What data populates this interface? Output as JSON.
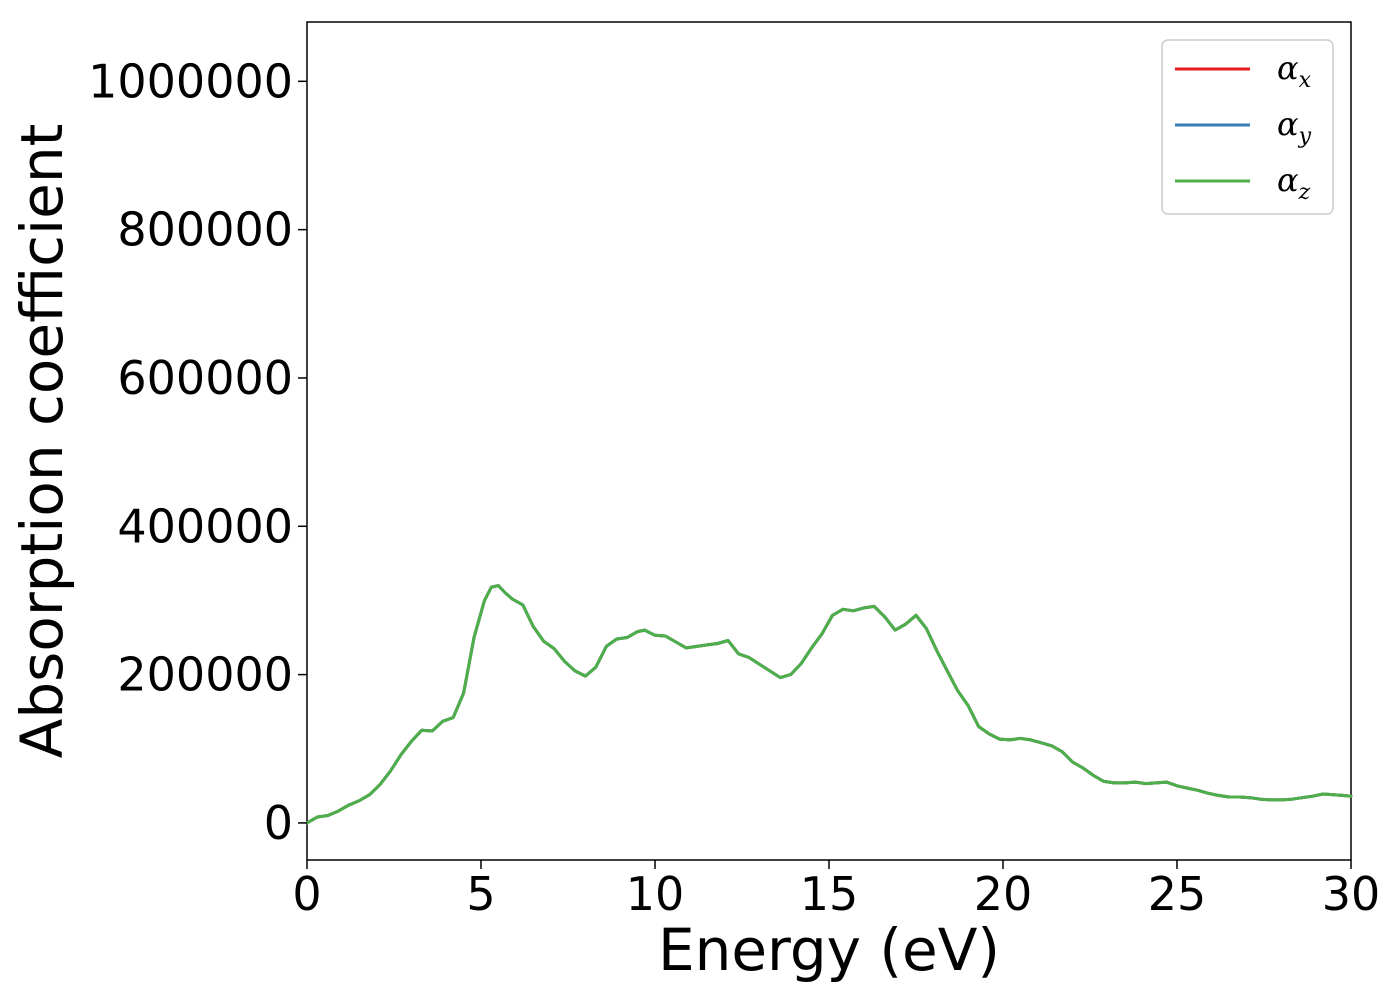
{
  "chart_data": {
    "type": "line",
    "xlabel": "Energy (eV)",
    "ylabel": "Absorption coefficient",
    "xlim": [
      0,
      30
    ],
    "ylim": [
      -50000,
      1080000
    ],
    "xticks": [
      0,
      5,
      10,
      15,
      20,
      25,
      30
    ],
    "yticks": [
      0,
      200000,
      400000,
      600000,
      800000,
      1000000
    ],
    "grid": false,
    "legend_position": "top-right",
    "series": [
      {
        "name": "α",
        "subscript": "x",
        "color": "#e41a1c"
      },
      {
        "name": "α",
        "subscript": "y",
        "color": "#377eb8"
      },
      {
        "name": "α",
        "subscript": "z",
        "color": "#4daf4a"
      }
    ],
    "x": [
      0,
      0.3,
      0.6,
      0.9,
      1.2,
      1.5,
      1.8,
      2.1,
      2.4,
      2.7,
      3.0,
      3.3,
      3.6,
      3.9,
      4.2,
      4.5,
      4.8,
      5.1,
      5.3,
      5.5,
      5.7,
      5.9,
      6.2,
      6.5,
      6.8,
      7.1,
      7.4,
      7.7,
      8.0,
      8.3,
      8.6,
      8.9,
      9.2,
      9.5,
      9.7,
      10.0,
      10.3,
      10.6,
      10.9,
      11.2,
      11.5,
      11.8,
      12.1,
      12.4,
      12.7,
      13.0,
      13.3,
      13.6,
      13.9,
      14.2,
      14.5,
      14.8,
      15.1,
      15.4,
      15.7,
      16.0,
      16.3,
      16.6,
      16.9,
      17.2,
      17.5,
      17.8,
      18.1,
      18.4,
      18.7,
      19.0,
      19.3,
      19.6,
      19.9,
      20.2,
      20.5,
      20.8,
      21.1,
      21.4,
      21.7,
      22.0,
      22.3,
      22.6,
      22.9,
      23.2,
      23.5,
      23.8,
      24.1,
      24.4,
      24.7,
      25.0,
      25.3,
      25.6,
      25.9,
      26.2,
      26.5,
      26.8,
      27.1,
      27.4,
      27.7,
      28.0,
      28.3,
      28.6,
      28.9,
      29.2,
      29.5,
      29.8,
      30.0
    ],
    "values": [
      0,
      8000,
      10000,
      16000,
      24000,
      30000,
      38000,
      52000,
      70000,
      92000,
      110000,
      125000,
      124000,
      137000,
      142000,
      175000,
      250000,
      300000,
      318000,
      320000,
      310000,
      302000,
      294000,
      265000,
      245000,
      235000,
      218000,
      205000,
      198000,
      210000,
      238000,
      248000,
      250000,
      258000,
      260000,
      253000,
      252000,
      244000,
      236000,
      238000,
      240000,
      242000,
      246000,
      228000,
      223000,
      214000,
      205000,
      196000,
      200000,
      215000,
      236000,
      255000,
      280000,
      288000,
      286000,
      290000,
      292000,
      278000,
      260000,
      268000,
      280000,
      262000,
      232000,
      205000,
      178000,
      158000,
      130000,
      120000,
      113000,
      112000,
      114000,
      112000,
      108000,
      104000,
      96000,
      82000,
      74000,
      64000,
      56000,
      54000,
      54000,
      55000,
      53000,
      54000,
      55000,
      50000,
      47000,
      44000,
      40000,
      37000,
      35000,
      35000,
      34000,
      32000,
      31000,
      31000,
      32000,
      34000,
      36000,
      39000,
      38000,
      37000,
      36000
    ]
  }
}
